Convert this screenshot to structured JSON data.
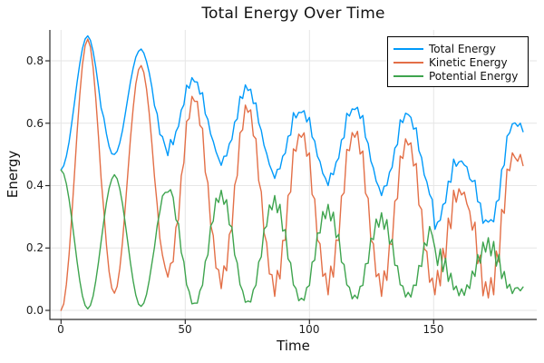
{
  "title": "Total Energy Over Time",
  "axes": {
    "x_label": "Time",
    "y_label": "Energy",
    "x_ticks": [
      "0",
      "50",
      "100",
      "150"
    ],
    "x_tick_values": [
      0,
      50,
      100,
      150
    ],
    "y_ticks": [
      "0.0",
      "0.2",
      "0.4",
      "0.6",
      "0.8"
    ],
    "y_tick_values": [
      0,
      0.2,
      0.4,
      0.6,
      0.8
    ],
    "xlim": [
      -4.5,
      191.5
    ],
    "ylim": [
      -0.029,
      0.899
    ],
    "grid": true,
    "grid_color": "#e6e6e6",
    "spine_color": "#2b2b2b"
  },
  "legend": {
    "position": "top-right",
    "border_color": "#000000",
    "background": "#ffffff"
  },
  "chart_data": {
    "type": "line",
    "title": "Total Energy Over Time",
    "xlabel": "Time",
    "ylabel": "Energy",
    "x": [
      0,
      1.08,
      2.15,
      3.23,
      4.3,
      5.38,
      6.45,
      7.53,
      8.6,
      9.68,
      10.75,
      11.83,
      12.9,
      13.98,
      15.05,
      16.13,
      17.2,
      18.28,
      19.35,
      20.43,
      21.5,
      22.58,
      23.65,
      24.73,
      25.8,
      26.88,
      27.95,
      29.03,
      30.1,
      31.18,
      32.25,
      33.33,
      34.4,
      35.48,
      36.55,
      37.63,
      38.7,
      39.78,
      40.85,
      41.93,
      43,
      44.08,
      45.15,
      46.23,
      47.3,
      48.38,
      49.45,
      50.53,
      51.6,
      52.68,
      53.75,
      54.83,
      55.9,
      56.98,
      58.05,
      59.13,
      60.2,
      61.28,
      62.35,
      63.43,
      64.5,
      65.58,
      66.65,
      67.73,
      68.8,
      69.88,
      70.95,
      72.03,
      73.1,
      74.18,
      75.25,
      76.33,
      77.4,
      78.48,
      79.55,
      80.63,
      81.7,
      82.78,
      83.85,
      84.93,
      86,
      87.08,
      88.15,
      89.23,
      90.3,
      91.38,
      92.45,
      93.53,
      94.6,
      95.68,
      96.75,
      97.83,
      98.9,
      99.98,
      101.05,
      102.13,
      103.2,
      104.28,
      105.35,
      106.43,
      107.5,
      108.58,
      109.65,
      110.73,
      111.8,
      112.88,
      113.95,
      115.03,
      116.1,
      117.18,
      118.25,
      119.33,
      120.4,
      121.48,
      122.55,
      123.63,
      124.7,
      125.78,
      126.85,
      127.93,
      129,
      130.08,
      131.15,
      132.23,
      133.3,
      134.38,
      135.45,
      136.53,
      137.6,
      138.68,
      139.75,
      140.83,
      141.9,
      142.98,
      144.05,
      145.13,
      146.2,
      147.28,
      148.35,
      149.43,
      150.5,
      151.58,
      152.65,
      153.73,
      154.8,
      155.88,
      156.95,
      158.03,
      159.1,
      160.18,
      161.25,
      162.33,
      163.4,
      164.48,
      165.55,
      166.63,
      167.7,
      168.78,
      169.85,
      170.93,
      172,
      173.08,
      174.15,
      175.23,
      176.3,
      177.38,
      178.45,
      179.53,
      180.6,
      181.68,
      182.75,
      183.83,
      184.9,
      185.98
    ],
    "series": [
      {
        "name": "Total Energy",
        "color": "#009AFA",
        "y": [
          0.45,
          0.464,
          0.494,
          0.54,
          0.6,
          0.665,
          0.731,
          0.791,
          0.839,
          0.87,
          0.88,
          0.866,
          0.83,
          0.78,
          0.717,
          0.649,
          0.618,
          0.566,
          0.526,
          0.502,
          0.5,
          0.51,
          0.537,
          0.577,
          0.627,
          0.681,
          0.733,
          0.777,
          0.812,
          0.831,
          0.838,
          0.825,
          0.798,
          0.763,
          0.716,
          0.656,
          0.63,
          0.564,
          0.557,
          0.526,
          0.496,
          0.548,
          0.531,
          0.573,
          0.59,
          0.642,
          0.659,
          0.722,
          0.712,
          0.746,
          0.733,
          0.732,
          0.693,
          0.698,
          0.63,
          0.612,
          0.565,
          0.542,
          0.509,
          0.487,
          0.465,
          0.494,
          0.495,
          0.534,
          0.548,
          0.604,
          0.614,
          0.686,
          0.679,
          0.723,
          0.705,
          0.709,
          0.663,
          0.665,
          0.601,
          0.577,
          0.529,
          0.503,
          0.468,
          0.447,
          0.423,
          0.452,
          0.454,
          0.494,
          0.504,
          0.558,
          0.562,
          0.634,
          0.617,
          0.635,
          0.634,
          0.64,
          0.604,
          0.619,
          0.556,
          0.543,
          0.494,
          0.477,
          0.439,
          0.424,
          0.4,
          0.44,
          0.435,
          0.475,
          0.488,
          0.546,
          0.554,
          0.632,
          0.623,
          0.646,
          0.644,
          0.651,
          0.615,
          0.625,
          0.555,
          0.535,
          0.479,
          0.456,
          0.414,
          0.396,
          0.368,
          0.398,
          0.4,
          0.443,
          0.459,
          0.52,
          0.532,
          0.611,
          0.602,
          0.632,
          0.628,
          0.619,
          0.581,
          0.585,
          0.512,
          0.49,
          0.434,
          0.412,
          0.372,
          0.356,
          0.26,
          0.283,
          0.289,
          0.339,
          0.345,
          0.414,
          0.411,
          0.485,
          0.462,
          0.476,
          0.479,
          0.466,
          0.46,
          0.422,
          0.413,
          0.417,
          0.349,
          0.344,
          0.279,
          0.29,
          0.283,
          0.291,
          0.284,
          0.348,
          0.355,
          0.451,
          0.466,
          0.558,
          0.569,
          0.598,
          0.601,
          0.59,
          0.6,
          0.573
        ]
      },
      {
        "name": "Kinetic Energy",
        "color": "#E36F47",
        "y": [
          0.0,
          0.021,
          0.083,
          0.179,
          0.301,
          0.435,
          0.569,
          0.691,
          0.787,
          0.849,
          0.87,
          0.845,
          0.779,
          0.681,
          0.558,
          0.424,
          0.321,
          0.21,
          0.125,
          0.071,
          0.055,
          0.077,
          0.134,
          0.219,
          0.325,
          0.439,
          0.551,
          0.649,
          0.726,
          0.772,
          0.785,
          0.763,
          0.71,
          0.634,
          0.536,
          0.428,
          0.338,
          0.232,
          0.177,
          0.137,
          0.107,
          0.15,
          0.156,
          0.266,
          0.292,
          0.431,
          0.473,
          0.606,
          0.615,
          0.686,
          0.67,
          0.67,
          0.593,
          0.583,
          0.443,
          0.409,
          0.275,
          0.24,
          0.136,
          0.13,
          0.07,
          0.143,
          0.127,
          0.243,
          0.261,
          0.401,
          0.432,
          0.569,
          0.579,
          0.658,
          0.635,
          0.643,
          0.56,
          0.55,
          0.416,
          0.38,
          0.249,
          0.217,
          0.117,
          0.114,
          0.045,
          0.128,
          0.101,
          0.224,
          0.225,
          0.368,
          0.38,
          0.518,
          0.51,
          0.565,
          0.555,
          0.569,
          0.494,
          0.505,
          0.372,
          0.357,
          0.226,
          0.213,
          0.109,
          0.119,
          0.05,
          0.142,
          0.107,
          0.226,
          0.224,
          0.366,
          0.377,
          0.516,
          0.512,
          0.57,
          0.555,
          0.574,
          0.501,
          0.511,
          0.376,
          0.359,
          0.227,
          0.213,
          0.108,
          0.118,
          0.045,
          0.127,
          0.096,
          0.214,
          0.211,
          0.35,
          0.359,
          0.495,
          0.487,
          0.55,
          0.53,
          0.537,
          0.463,
          0.471,
          0.338,
          0.324,
          0.197,
          0.189,
          0.09,
          0.104,
          0.05,
          0.128,
          0.079,
          0.199,
          0.158,
          0.296,
          0.262,
          0.385,
          0.347,
          0.39,
          0.37,
          0.379,
          0.341,
          0.318,
          0.257,
          0.283,
          0.15,
          0.177,
          0.047,
          0.092,
          0.04,
          0.105,
          0.05,
          0.19,
          0.155,
          0.324,
          0.311,
          0.453,
          0.448,
          0.505,
          0.49,
          0.478,
          0.5,
          0.464
        ]
      },
      {
        "name": "Potential Energy",
        "color": "#3EA44E",
        "y": [
          0.45,
          0.438,
          0.406,
          0.356,
          0.294,
          0.225,
          0.157,
          0.095,
          0.047,
          0.016,
          0.005,
          0.016,
          0.046,
          0.094,
          0.154,
          0.22,
          0.286,
          0.345,
          0.391,
          0.421,
          0.435,
          0.422,
          0.39,
          0.342,
          0.282,
          0.217,
          0.152,
          0.094,
          0.049,
          0.02,
          0.013,
          0.023,
          0.051,
          0.095,
          0.15,
          0.203,
          0.272,
          0.316,
          0.367,
          0.378,
          0.379,
          0.387,
          0.362,
          0.291,
          0.278,
          0.186,
          0.156,
          0.082,
          0.06,
          0.021,
          0.023,
          0.023,
          0.063,
          0.081,
          0.157,
          0.178,
          0.27,
          0.286,
          0.36,
          0.346,
          0.385,
          0.34,
          0.355,
          0.275,
          0.267,
          0.178,
          0.152,
          0.083,
          0.063,
          0.026,
          0.03,
          0.027,
          0.066,
          0.081,
          0.155,
          0.172,
          0.26,
          0.27,
          0.338,
          0.322,
          0.368,
          0.313,
          0.34,
          0.254,
          0.259,
          0.165,
          0.152,
          0.082,
          0.07,
          0.031,
          0.039,
          0.032,
          0.073,
          0.08,
          0.154,
          0.161,
          0.248,
          0.248,
          0.317,
          0.294,
          0.34,
          0.287,
          0.315,
          0.233,
          0.244,
          0.155,
          0.147,
          0.082,
          0.074,
          0.037,
          0.049,
          0.038,
          0.077,
          0.08,
          0.149,
          0.151,
          0.232,
          0.227,
          0.293,
          0.267,
          0.313,
          0.26,
          0.291,
          0.213,
          0.228,
          0.145,
          0.143,
          0.082,
          0.078,
          0.043,
          0.058,
          0.043,
          0.081,
          0.08,
          0.144,
          0.141,
          0.217,
          0.207,
          0.269,
          0.241,
          0.2,
          0.144,
          0.197,
          0.124,
          0.167,
          0.093,
          0.119,
          0.066,
          0.078,
          0.047,
          0.069,
          0.048,
          0.082,
          0.07,
          0.126,
          0.109,
          0.179,
          0.151,
          0.219,
          0.187,
          0.233,
          0.175,
          0.221,
          0.142,
          0.18,
          0.102,
          0.125,
          0.071,
          0.084,
          0.054,
          0.071,
          0.073,
          0.063,
          0.075
        ]
      }
    ]
  }
}
